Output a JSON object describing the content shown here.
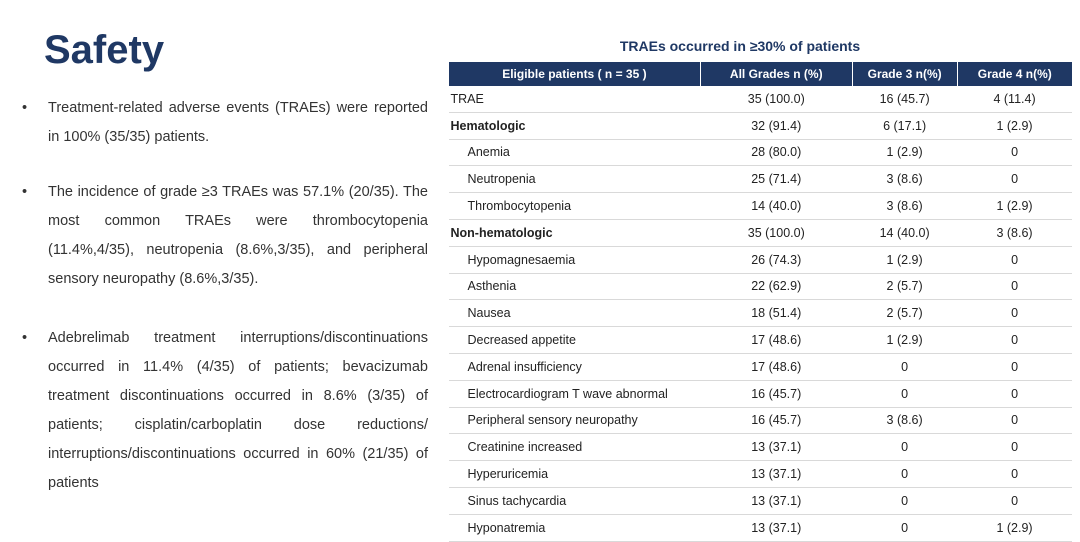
{
  "title": "Safety",
  "bullets": [
    "Treatment-related adverse events (TRAEs) were reported in 100% (35/35) patients.",
    "The incidence of grade ≥3 TRAEs was 57.1% (20/35). The most common TRAEs were thrombocytopenia (11.4%,4/35), neutropenia (8.6%,3/35), and peripheral sensory neuropathy (8.6%,3/35).",
    "Adebrelimab treatment interruptions/discontinuations occurred in 11.4% (4/35) of patients; bevacizumab treatment discontinuations occurred in 8.6% (3/35) of patients; cisplatin/carboplatin dose reductions/ interruptions/discontinuations occurred in 60% (21/35) of patients"
  ],
  "table": {
    "caption": "TRAEs occurred in ≥30% of patients",
    "header": [
      "Eligible patients ( n = 35 )",
      "All Grades  n (%)",
      "Grade 3   n(%)",
      "Grade 4  n(%)"
    ],
    "rows": [
      [
        "TRAE",
        "35 (100.0)",
        "16 (45.7)",
        "4 (11.4)"
      ],
      [
        "Hematologic",
        "32 (91.4)",
        "6 (17.1)",
        "1 (2.9)"
      ],
      [
        "Anemia",
        "28 (80.0)",
        "1 (2.9)",
        "0"
      ],
      [
        "Neutropenia",
        "25 (71.4)",
        "3 (8.6)",
        "0"
      ],
      [
        "Thrombocytopenia",
        "14 (40.0)",
        "3 (8.6)",
        "1 (2.9)"
      ],
      [
        "Non-hematologic",
        "35 (100.0)",
        "14 (40.0)",
        "3 (8.6)"
      ],
      [
        "Hypomagnesaemia",
        "26 (74.3)",
        "1 (2.9)",
        "0"
      ],
      [
        "Asthenia",
        "22 (62.9)",
        "2 (5.7)",
        "0"
      ],
      [
        "Nausea",
        "18 (51.4)",
        "2 (5.7)",
        "0"
      ],
      [
        "Decreased appetite",
        "17 (48.6)",
        "1 (2.9)",
        "0"
      ],
      [
        "Adrenal insufficiency",
        "17 (48.6)",
        "0",
        "0"
      ],
      [
        "Electrocardiogram T wave abnormal",
        "16 (45.7)",
        "0",
        "0"
      ],
      [
        "Peripheral sensory neuropathy",
        "16 (45.7)",
        "3 (8.6)",
        "0"
      ],
      [
        "Creatinine increased",
        "13 (37.1)",
        "0",
        "0"
      ],
      [
        "Hyperuricemia",
        "13 (37.1)",
        "0",
        "0"
      ],
      [
        "Sinus tachycardia",
        "13 (37.1)",
        "0",
        "0"
      ],
      [
        "Hyponatremia",
        "13 (37.1)",
        "0",
        "1 (2.9)"
      ]
    ]
  }
}
